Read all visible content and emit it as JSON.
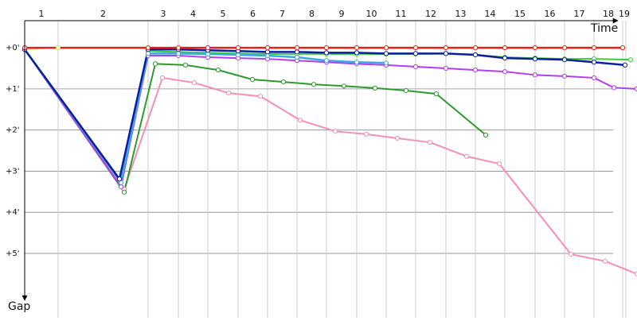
{
  "chart_data": {
    "type": "line",
    "x_label": "Time",
    "y_label": "Gap",
    "xlim": [
      0,
      769
    ],
    "ylim": [
      -0.66,
      6.18
    ],
    "yticks": [
      {
        "value": 0,
        "label": "+0'"
      },
      {
        "value": 1,
        "label": "+1'"
      },
      {
        "value": 2,
        "label": "+2'"
      },
      {
        "value": 3,
        "label": "+3'"
      },
      {
        "value": 4,
        "label": "+4'"
      },
      {
        "value": 5,
        "label": "+5'"
      }
    ],
    "grid": true,
    "laps": [
      "1",
      "2",
      "3",
      "4",
      "5",
      "6",
      "7",
      "8",
      "9",
      "10",
      "11",
      "12",
      "13",
      "14",
      "15",
      "16",
      "17",
      "18",
      "19"
    ],
    "lap_ends": [
      42,
      155,
      193,
      230,
      268,
      305,
      342,
      379,
      417,
      454,
      491,
      529,
      566,
      603,
      641,
      678,
      715,
      751,
      755
    ],
    "series": [
      {
        "color": "#e0e030",
        "width": 1.2,
        "x": [
          0,
          42
        ],
        "values": [
          0.04,
          0
        ]
      },
      {
        "color": "#f48fb8",
        "width": 2,
        "x": [
          0,
          125,
          173,
          213,
          256,
          296,
          346,
          390,
          429,
          468,
          509,
          555,
          596,
          686,
          729,
          769
        ],
        "values": [
          0.04,
          3.44,
          0.73,
          0.85,
          1.1,
          1.18,
          1.76,
          2.03,
          2.1,
          2.2,
          2.3,
          2.64,
          2.82,
          5.02,
          5.19,
          5.5
        ]
      },
      {
        "color": "#2e9a2e",
        "width": 2,
        "x": [
          0,
          125,
          164,
          202,
          243,
          286,
          325,
          363,
          401,
          440,
          479,
          517,
          579
        ],
        "values": [
          0.04,
          3.51,
          0.39,
          0.42,
          0.54,
          0.77,
          0.83,
          0.89,
          0.93,
          0.98,
          1.04,
          1.12,
          2.12
        ]
      },
      {
        "color": "#b23ef0",
        "width": 2,
        "x": [
          0,
          121,
          155,
          193,
          230,
          268,
          305,
          342,
          379,
          417,
          454,
          491,
          529,
          566,
          603,
          641,
          678,
          715,
          740,
          769
        ],
        "values": [
          0.04,
          3.38,
          0.19,
          0.19,
          0.23,
          0.25,
          0.27,
          0.31,
          0.35,
          0.39,
          0.42,
          0.46,
          0.5,
          0.54,
          0.58,
          0.66,
          0.69,
          0.73,
          0.97,
          1.0
        ]
      },
      {
        "color": "#3ec93e",
        "width": 2,
        "x": [
          0,
          120,
          155,
          193,
          230,
          268,
          305,
          342,
          379,
          417,
          454,
          491,
          529,
          566,
          603,
          641,
          678,
          715,
          761
        ],
        "values": [
          0.04,
          3.24,
          0.08,
          0.1,
          0.12,
          0.14,
          0.15,
          0.15,
          0.15,
          0.15,
          0.15,
          0.15,
          0.14,
          0.17,
          0.23,
          0.25,
          0.27,
          0.27,
          0.29
        ]
      },
      {
        "color": "#3ba7e6",
        "width": 2.5,
        "x": [
          0,
          121,
          155,
          193,
          230,
          268,
          305,
          342,
          379,
          417,
          454
        ],
        "values": [
          0.04,
          3.28,
          0.14,
          0.14,
          0.15,
          0.17,
          0.19,
          0.23,
          0.31,
          0.35,
          0.37
        ]
      },
      {
        "color": "#0a1fa0",
        "width": 2.5,
        "x": [
          0,
          119,
          155,
          193,
          230,
          268,
          305,
          342,
          379,
          417,
          454,
          491,
          529,
          566,
          603,
          641,
          678,
          715,
          754
        ],
        "values": [
          0.04,
          3.19,
          0.04,
          0.04,
          0.06,
          0.08,
          0.1,
          0.1,
          0.12,
          0.12,
          0.14,
          0.14,
          0.14,
          0.17,
          0.25,
          0.27,
          0.29,
          0.35,
          0.42
        ]
      },
      {
        "color": "#e8201a",
        "width": 2.5,
        "x": [
          0,
          155,
          193,
          230,
          268,
          305,
          342,
          379,
          417,
          454,
          491,
          529,
          566,
          603,
          641,
          678,
          715,
          751
        ],
        "values": [
          0,
          0,
          0,
          0,
          0,
          0,
          0,
          0,
          0,
          0,
          0,
          0,
          0,
          0,
          0,
          0,
          0,
          0
        ]
      }
    ]
  }
}
